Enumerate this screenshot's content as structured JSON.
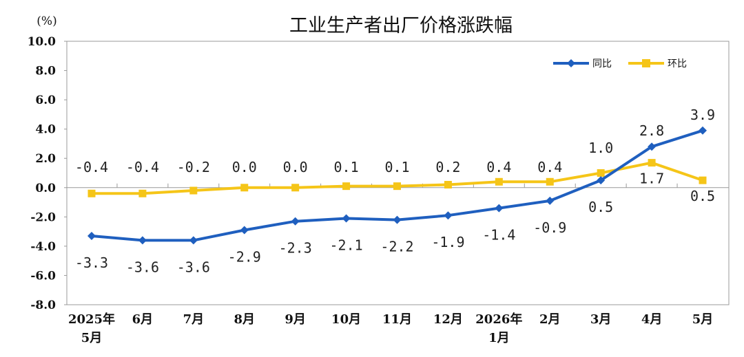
{
  "chart_data": {
    "type": "line",
    "title": "工业生产者出厂价格涨跌幅",
    "unit_label": "(%)",
    "ylim": [
      -8.0,
      10.0
    ],
    "yticks": [
      "10.0",
      "8.0",
      "6.0",
      "4.0",
      "2.0",
      "0.0",
      "-2.0",
      "-4.0",
      "-6.0",
      "-8.0"
    ],
    "categories": [
      [
        "2025年",
        "5月"
      ],
      [
        "6月"
      ],
      [
        "7月"
      ],
      [
        "8月"
      ],
      [
        "9月"
      ],
      [
        "10月"
      ],
      [
        "11月"
      ],
      [
        "12月"
      ],
      [
        "2026年",
        "1月"
      ],
      [
        "2月"
      ],
      [
        "3月"
      ],
      [
        "4月"
      ],
      [
        "5月"
      ]
    ],
    "grid": false,
    "legend_position": "top-right",
    "series": [
      {
        "name": "同比",
        "color": "#1f5fbf",
        "marker": "diamond",
        "values": [
          -3.3,
          -3.6,
          -3.6,
          -2.9,
          -2.3,
          -2.1,
          -2.2,
          -1.9,
          -1.4,
          -0.9,
          0.5,
          2.8,
          3.9
        ],
        "labels": [
          "-3.3",
          "-3.6",
          "-3.6",
          "-2.9",
          "-2.3",
          "-2.1",
          "-2.2",
          "-1.9",
          "-1.4",
          "-0.9",
          "0.5",
          "2.8",
          "3.9"
        ]
      },
      {
        "name": "环比",
        "color": "#f5c518",
        "marker": "square",
        "values": [
          -0.4,
          -0.4,
          -0.2,
          0.0,
          0.0,
          0.1,
          0.1,
          0.2,
          0.4,
          0.4,
          1.0,
          1.7,
          0.5
        ],
        "labels": [
          "-0.4",
          "-0.4",
          "-0.2",
          "0.0",
          "0.0",
          "0.1",
          "0.1",
          "0.2",
          "0.4",
          "0.4",
          "1.0",
          "1.7",
          "0.5"
        ]
      }
    ]
  }
}
